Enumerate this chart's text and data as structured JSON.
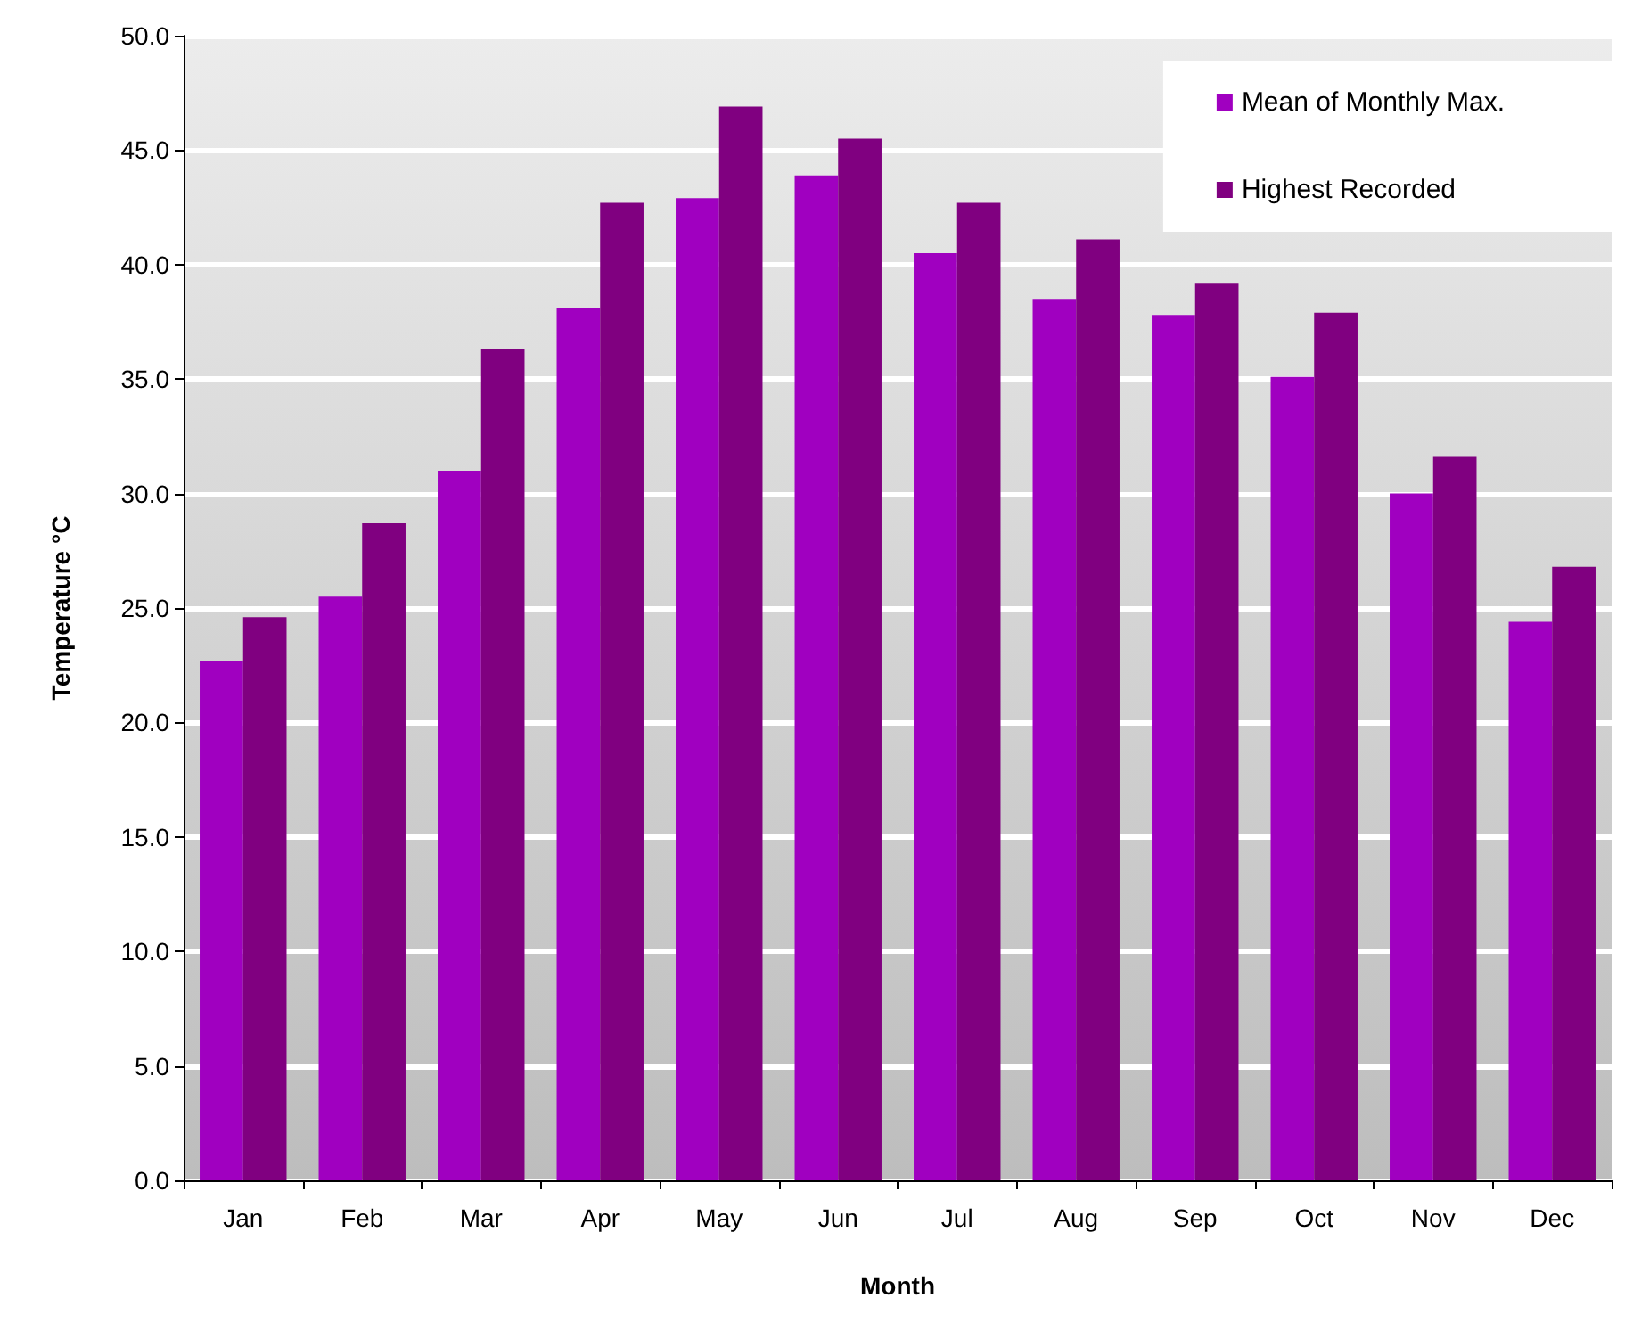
{
  "chart_data": {
    "type": "bar",
    "xlabel": "Month",
    "ylabel": "Temperature °C",
    "categories": [
      "Jan",
      "Feb",
      "Mar",
      "Apr",
      "May",
      "Jun",
      "Jul",
      "Aug",
      "Sep",
      "Oct",
      "Nov",
      "Dec"
    ],
    "series": [
      {
        "name": "Mean of Monthly Max.",
        "color": "#a000c0",
        "values": [
          22.7,
          25.5,
          31.0,
          38.1,
          42.9,
          43.9,
          40.5,
          38.5,
          37.8,
          35.1,
          30.0,
          24.4
        ]
      },
      {
        "name": "Highest Recorded",
        "color": "#800080",
        "values": [
          24.6,
          28.7,
          36.3,
          42.7,
          46.9,
          45.5,
          42.7,
          41.1,
          39.2,
          37.9,
          31.6,
          26.8
        ]
      }
    ],
    "ylim": [
      0,
      50
    ],
    "yticks": [
      {
        "value": 0,
        "label": "0.0"
      },
      {
        "value": 5,
        "label": "5.0"
      },
      {
        "value": 10,
        "label": "10.0"
      },
      {
        "value": 15,
        "label": "15.0"
      },
      {
        "value": 20,
        "label": "20.0"
      },
      {
        "value": 25,
        "label": "25.0"
      },
      {
        "value": 30,
        "label": "30.0"
      },
      {
        "value": 35,
        "label": "35.0"
      },
      {
        "value": 40,
        "label": "40.0"
      },
      {
        "value": 45,
        "label": "45.0"
      },
      {
        "value": 50,
        "label": "50.0"
      }
    ],
    "grid": "y",
    "legend": "top right"
  }
}
